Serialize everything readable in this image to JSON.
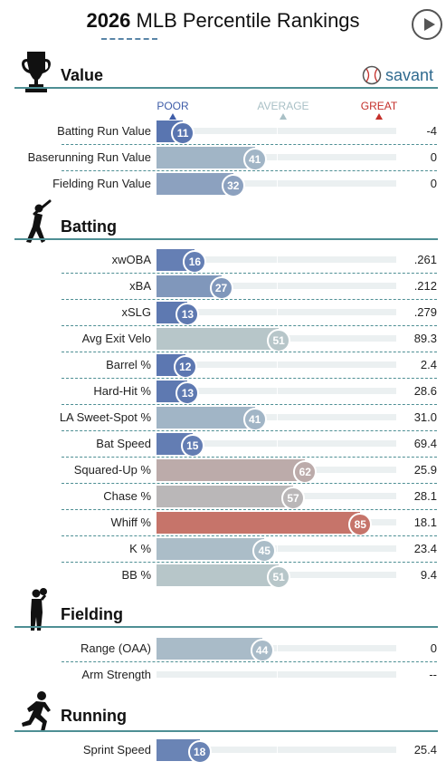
{
  "header": {
    "year": "2026",
    "title": "MLB Percentile Rankings"
  },
  "brand": {
    "name": "savant"
  },
  "scale": {
    "poor": "POOR",
    "average": "AVERAGE",
    "great": "GREAT",
    "poor_color": "#3f5da8",
    "average_color": "#a9c0c6",
    "great_color": "#c4302b"
  },
  "chart_data": {
    "type": "bar",
    "xlim": [
      0,
      100
    ],
    "sections": [
      {
        "name": "Value",
        "icon": "trophy-icon",
        "rows": [
          {
            "label": "Batting Run Value",
            "percentile": 11,
            "value": "-4"
          },
          {
            "label": "Baserunning Run Value",
            "percentile": 41,
            "value": "0"
          },
          {
            "label": "Fielding Run Value",
            "percentile": 32,
            "value": "0"
          }
        ]
      },
      {
        "name": "Batting",
        "icon": "batter-icon",
        "rows": [
          {
            "label": "xwOBA",
            "percentile": 16,
            "value": ".261"
          },
          {
            "label": "xBA",
            "percentile": 27,
            "value": ".212"
          },
          {
            "label": "xSLG",
            "percentile": 13,
            "value": ".279"
          },
          {
            "label": "Avg Exit Velo",
            "percentile": 51,
            "value": "89.3"
          },
          {
            "label": "Barrel %",
            "percentile": 12,
            "value": "2.4"
          },
          {
            "label": "Hard-Hit %",
            "percentile": 13,
            "value": "28.6"
          },
          {
            "label": "LA Sweet-Spot %",
            "percentile": 41,
            "value": "31.0"
          },
          {
            "label": "Bat Speed",
            "percentile": 15,
            "value": "69.4"
          },
          {
            "label": "Squared-Up %",
            "percentile": 62,
            "value": "25.9"
          },
          {
            "label": "Chase %",
            "percentile": 57,
            "value": "28.1"
          },
          {
            "label": "Whiff %",
            "percentile": 85,
            "value": "18.1"
          },
          {
            "label": "K %",
            "percentile": 45,
            "value": "23.4"
          },
          {
            "label": "BB %",
            "percentile": 51,
            "value": "9.4"
          }
        ]
      },
      {
        "name": "Fielding",
        "icon": "fielder-icon",
        "rows": [
          {
            "label": "Range (OAA)",
            "percentile": 44,
            "value": "0"
          },
          {
            "label": "Arm Strength",
            "percentile": null,
            "value": "--"
          }
        ]
      },
      {
        "name": "Running",
        "icon": "runner-icon",
        "rows": [
          {
            "label": "Sprint Speed",
            "percentile": 18,
            "value": "25.4"
          }
        ]
      }
    ]
  }
}
